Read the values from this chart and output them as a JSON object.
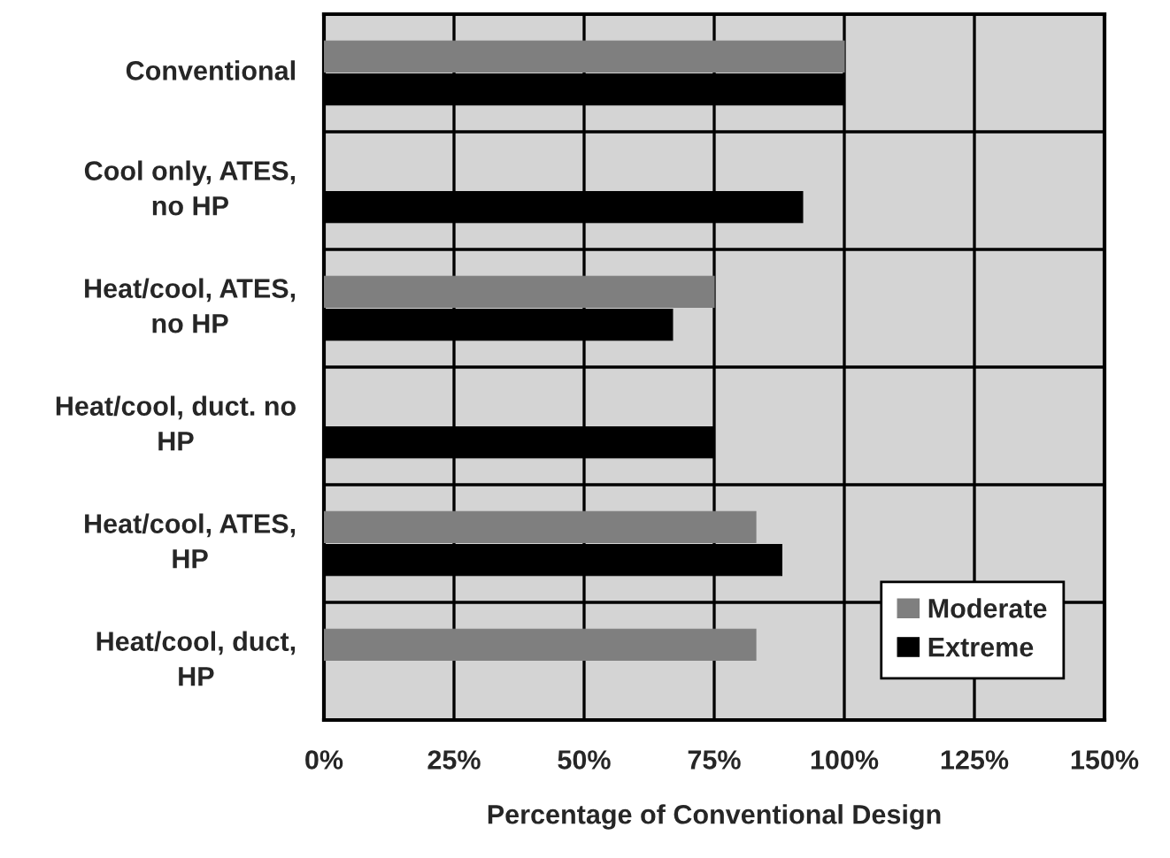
{
  "chart_data": {
    "type": "bar",
    "orientation": "horizontal",
    "xlabel": "Percentage of Conventional Design",
    "categories": [
      "Conventional",
      "Cool only, ATES,\nno HP",
      "Heat/cool, ATES,\nno HP",
      "Heat/cool, duct. no\nHP",
      "Heat/cool, ATES,\nHP",
      "Heat/cool, duct,\nHP"
    ],
    "series": [
      {
        "name": "Moderate",
        "color": "#7f7f7f",
        "values": [
          100,
          null,
          75,
          null,
          83,
          83
        ]
      },
      {
        "name": "Extreme",
        "color": "#000000",
        "values": [
          100,
          92,
          67,
          75,
          88,
          null
        ]
      }
    ],
    "xlim": [
      0,
      150
    ],
    "xticks": [
      {
        "value": 0,
        "label": "0%"
      },
      {
        "value": 25,
        "label": "25%"
      },
      {
        "value": 50,
        "label": "50%"
      },
      {
        "value": 75,
        "label": "75%"
      },
      {
        "value": 100,
        "label": "100%"
      },
      {
        "value": 125,
        "label": "125%"
      },
      {
        "value": 150,
        "label": "150%"
      }
    ],
    "grid": true,
    "legend": "bottom right"
  }
}
